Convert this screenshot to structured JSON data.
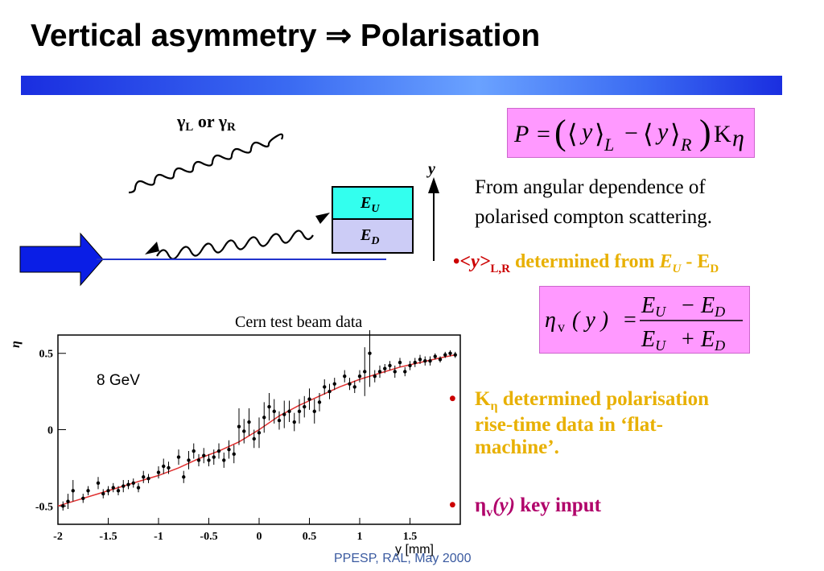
{
  "slide": {
    "title": "Vertical asymmetry ⇒ Polarisation",
    "footer": "PPESP, RAL, May 2000"
  },
  "diagram": {
    "photon_gamma": "γ",
    "photon_left_sub": "L",
    "photon_or": " or ",
    "photon_right_sub": "R",
    "detector_upper_E": "E",
    "detector_upper_sub": "U",
    "detector_lower_E": "E",
    "detector_lower_sub": "D",
    "y_axis_label": "y",
    "colors": {
      "upper": "#33ffee",
      "lower": "#ccccf6",
      "beam_arrow": "#0a1ee6"
    }
  },
  "text": {
    "description_line1": "From angular dependence of",
    "description_line2": "polarised compton scattering.",
    "bullet1_dot": "•",
    "bullet1_y": "<y>",
    "bullet1_sub": "L,R",
    "bullet1_mid": " determined from ",
    "bullet1_EU": "E",
    "bullet1_EU_sub": "U",
    "bullet1_dash": " - E",
    "bullet1_ED_sub": "D",
    "bullet2_dot": "•",
    "bullet2_K": "K",
    "bullet2_K_sub": "η",
    "bullet2_line1": " determined polarisation",
    "bullet2_line2": "rise-time data in ‘flat-",
    "bullet2_line3": "machine’.",
    "bullet3_dot": "•",
    "bullet3_eta": "η",
    "bullet3_sub": "v",
    "bullet3_paren": "(y)",
    "bullet3_rest": " key input"
  },
  "formulas": {
    "P": {
      "P": "P",
      "eq": "=",
      "y": "y",
      "L": "L",
      "minus": "−",
      "R": "R",
      "K": "K",
      "eta": "η"
    },
    "eta": {
      "eta": "η",
      "sub": "v",
      "arg": "( y )",
      "eq": "=",
      "num": "E",
      "U": "U",
      "minus": "−",
      "D": "D",
      "plus": "+"
    }
  },
  "chart_data": {
    "type": "scatter",
    "title": "Cern test beam data",
    "annotation": "8 GeV",
    "xlabel": "y [mm]",
    "ylabel": "η",
    "xlim": [
      -2.0,
      2.0
    ],
    "ylim": [
      -0.62,
      0.62
    ],
    "x_ticks": [
      "-2",
      "-1.5",
      "-1",
      "-0.5",
      "0",
      "0.5",
      "1",
      "1.5"
    ],
    "y_ticks": [
      "0.5",
      "0",
      "-0.5"
    ],
    "colors": {
      "points": "#000000",
      "fit": "#e03030"
    },
    "points": {
      "x": [
        -1.95,
        -1.9,
        -1.85,
        -1.75,
        -1.7,
        -1.6,
        -1.55,
        -1.5,
        -1.45,
        -1.4,
        -1.35,
        -1.3,
        -1.25,
        -1.2,
        -1.15,
        -1.1,
        -1.0,
        -0.95,
        -0.9,
        -0.8,
        -0.75,
        -0.7,
        -0.65,
        -0.6,
        -0.55,
        -0.5,
        -0.45,
        -0.4,
        -0.35,
        -0.3,
        -0.25,
        -0.2,
        -0.15,
        -0.1,
        -0.05,
        0.0,
        0.05,
        0.1,
        0.15,
        0.2,
        0.25,
        0.3,
        0.35,
        0.4,
        0.45,
        0.5,
        0.55,
        0.6,
        0.65,
        0.7,
        0.75,
        0.85,
        0.9,
        0.95,
        1.0,
        1.05,
        1.1,
        1.15,
        1.2,
        1.25,
        1.3,
        1.35,
        1.4,
        1.45,
        1.5,
        1.55,
        1.6,
        1.65,
        1.7,
        1.75,
        1.8,
        1.85,
        1.9,
        1.95
      ],
      "y": [
        -0.5,
        -0.47,
        -0.4,
        -0.45,
        -0.4,
        -0.35,
        -0.42,
        -0.4,
        -0.38,
        -0.4,
        -0.37,
        -0.36,
        -0.35,
        -0.38,
        -0.31,
        -0.32,
        -0.28,
        -0.24,
        -0.25,
        -0.18,
        -0.31,
        -0.2,
        -0.14,
        -0.2,
        -0.17,
        -0.2,
        -0.18,
        -0.14,
        -0.2,
        -0.13,
        -0.16,
        0.02,
        -0.01,
        0.05,
        -0.06,
        -0.02,
        0.08,
        0.15,
        0.12,
        0.06,
        0.1,
        0.12,
        0.05,
        0.12,
        0.15,
        0.2,
        0.12,
        0.18,
        0.28,
        0.25,
        0.3,
        0.35,
        0.3,
        0.28,
        0.35,
        0.38,
        0.5,
        0.35,
        0.38,
        0.4,
        0.42,
        0.38,
        0.44,
        0.38,
        0.42,
        0.44,
        0.46,
        0.45,
        0.45,
        0.48,
        0.46,
        0.49,
        0.5,
        0.49
      ],
      "err": [
        0.03,
        0.05,
        0.07,
        0.03,
        0.03,
        0.04,
        0.03,
        0.03,
        0.03,
        0.03,
        0.04,
        0.03,
        0.03,
        0.03,
        0.04,
        0.03,
        0.04,
        0.05,
        0.04,
        0.05,
        0.04,
        0.06,
        0.05,
        0.04,
        0.05,
        0.04,
        0.05,
        0.05,
        0.05,
        0.06,
        0.06,
        0.12,
        0.08,
        0.09,
        0.06,
        0.1,
        0.1,
        0.09,
        0.08,
        0.06,
        0.09,
        0.07,
        0.06,
        0.08,
        0.07,
        0.07,
        0.08,
        0.06,
        0.05,
        0.05,
        0.04,
        0.04,
        0.04,
        0.04,
        0.04,
        0.16,
        0.22,
        0.04,
        0.04,
        0.03,
        0.03,
        0.04,
        0.03,
        0.03,
        0.03,
        0.03,
        0.03,
        0.03,
        0.03,
        0.02,
        0.02,
        0.02,
        0.02,
        0.02
      ]
    },
    "fit": {
      "x": [
        -2.0,
        -1.8,
        -1.6,
        -1.4,
        -1.2,
        -1.0,
        -0.8,
        -0.6,
        -0.4,
        -0.2,
        0.0,
        0.2,
        0.4,
        0.6,
        0.8,
        1.0,
        1.2,
        1.4,
        1.6,
        1.8,
        1.95
      ],
      "y": [
        -0.5,
        -0.46,
        -0.42,
        -0.38,
        -0.34,
        -0.3,
        -0.25,
        -0.19,
        -0.14,
        -0.08,
        0.0,
        0.09,
        0.16,
        0.22,
        0.28,
        0.33,
        0.37,
        0.41,
        0.44,
        0.47,
        0.49
      ]
    }
  }
}
